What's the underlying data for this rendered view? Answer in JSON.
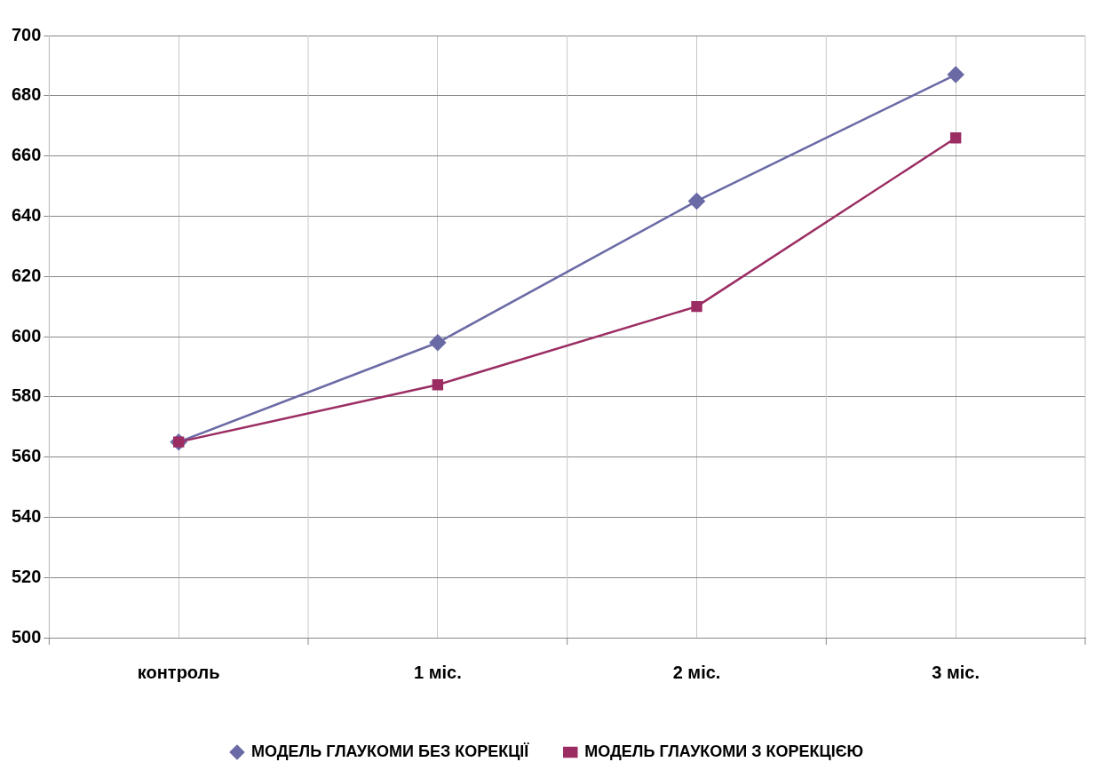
{
  "chart_data": {
    "type": "line",
    "categories": [
      "контроль",
      "1 міс.",
      "2 міс.",
      "3 міс."
    ],
    "series": [
      {
        "name": "МОДЕЛЬ ГЛАУКОМИ БЕЗ КОРЕКЦІЇ",
        "color": "#6a6aa6",
        "marker": "diamond",
        "values": [
          565,
          598,
          645,
          687
        ]
      },
      {
        "name": "МОДЕЛЬ ГЛАУКОМИ З КОРЕКЦІЄЮ",
        "color": "#9b2d63",
        "marker": "square",
        "values": [
          565,
          584,
          610,
          666
        ]
      }
    ],
    "ylim": [
      500,
      700
    ],
    "yticks": [
      500,
      520,
      540,
      560,
      580,
      600,
      620,
      640,
      660,
      680,
      700
    ],
    "grid": true,
    "legend": "bottom",
    "line_style": "solid"
  }
}
